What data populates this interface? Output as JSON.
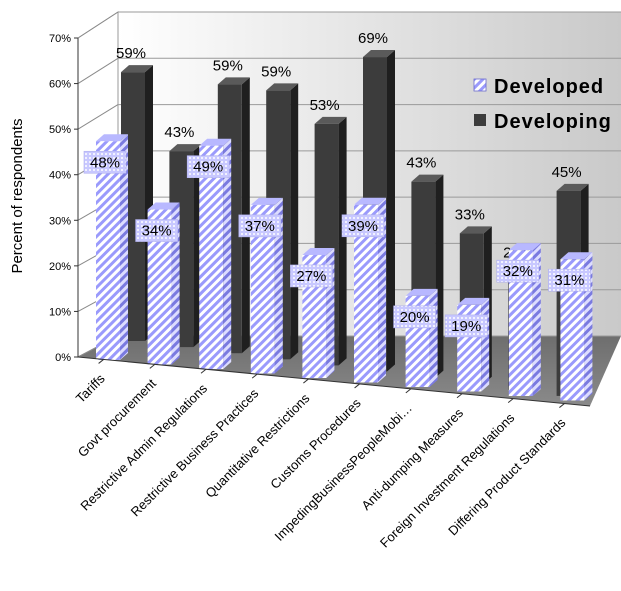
{
  "chart_data": {
    "type": "bar",
    "title": "",
    "xlabel": "",
    "ylabel": "Percent of respondents",
    "ylim": [
      0,
      70
    ],
    "y_ticks": [
      "0%",
      "10%",
      "20%",
      "30%",
      "40%",
      "50%",
      "60%",
      "70%"
    ],
    "categories": [
      "Tariffs",
      "Govt procurement",
      "Restrictive Admin Regulations",
      "Restrictive Business Practices",
      "Quantitative Restrictions",
      "Customs Procedures",
      "ImpedingBusinessPeopleMobi…",
      "Anti-dumping Measures",
      "Foreign Investment Regulations",
      "Differing Product Standards"
    ],
    "series": [
      {
        "name": "Developed",
        "values": [
          48,
          34,
          49,
          37,
          27,
          39,
          20,
          19,
          32,
          31
        ],
        "labels": [
          "48%",
          "34%",
          "49%",
          "37%",
          "27%",
          "39%",
          "20%",
          "19%",
          "32%",
          "31%"
        ]
      },
      {
        "name": "Developing",
        "values": [
          59,
          43,
          59,
          59,
          53,
          69,
          43,
          33,
          26,
          45
        ],
        "labels": [
          "59%",
          "43%",
          "59%",
          "59%",
          "53%",
          "69%",
          "43%",
          "33%",
          "26%",
          "45%"
        ]
      }
    ],
    "legend_position": "top-right",
    "grid": true,
    "style": "3d-clustered-bar",
    "colors": {
      "Developed": "#9999ff",
      "Developing": "#3c3c3c"
    }
  }
}
